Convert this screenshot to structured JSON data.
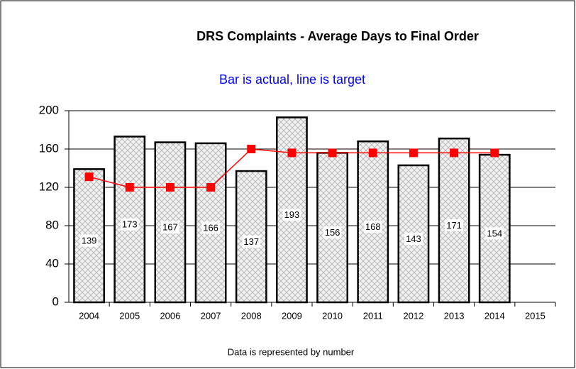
{
  "chart_data": {
    "type": "bar",
    "title": "DRS Complaints  - Average Days to Final Order",
    "subtitle": "Bar is actual, line is target",
    "footer": "Data is represented by number",
    "categories": [
      "2004",
      "2005",
      "2006",
      "2007",
      "2008",
      "2009",
      "2010",
      "2011",
      "2012",
      "2013",
      "2014",
      "2015"
    ],
    "series": [
      {
        "type": "bar",
        "color": "#e6e6e6",
        "data_labels": true,
        "values": [
          139,
          173,
          167,
          166,
          137,
          193,
          156,
          168,
          143,
          171,
          154,
          null
        ]
      },
      {
        "type": "line",
        "color": "#ff0000",
        "values": [
          131,
          120,
          120,
          120,
          160,
          156,
          156,
          156,
          156,
          156,
          156,
          null
        ]
      }
    ],
    "ylim": [
      0,
      200
    ],
    "yticks": [
      0,
      40,
      80,
      120,
      160,
      200
    ],
    "grid": true
  }
}
